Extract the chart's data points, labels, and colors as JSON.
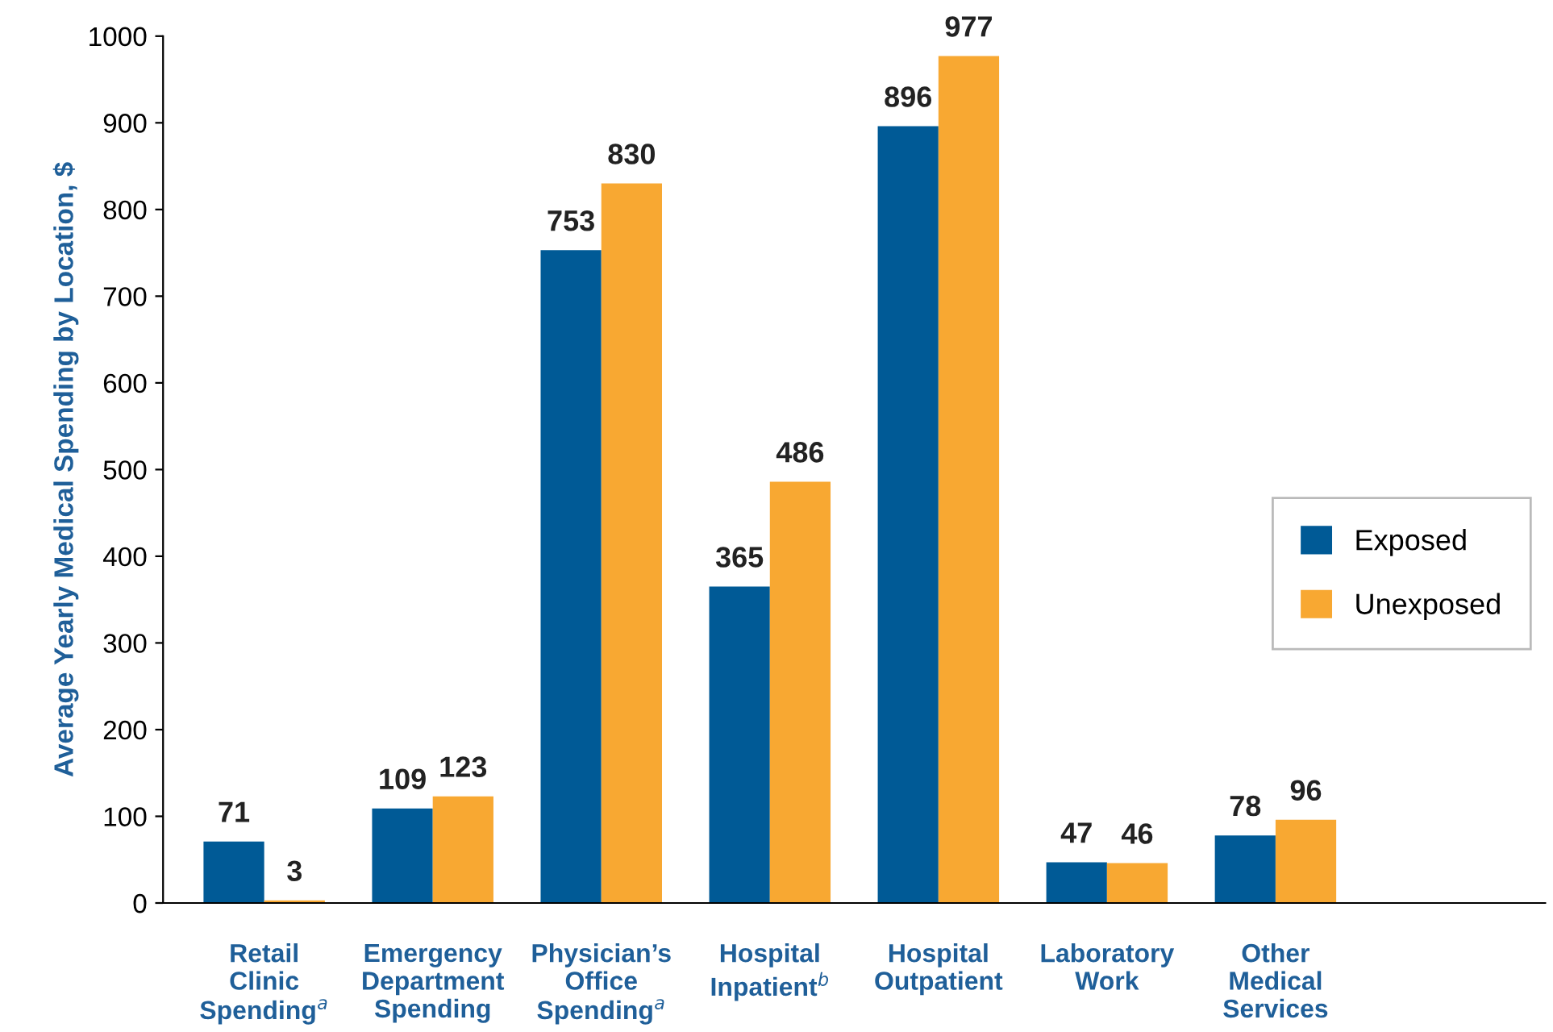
{
  "chart_data": {
    "type": "bar",
    "ylabel": "Average Yearly Medical Spending by Location, $",
    "categories": [
      "Retail\nClinic\nSpending$^{a}$",
      "Emergency\nDepartment\nSpending",
      "Physician’s\nOffice\nSpending$^{a}$",
      "Hospital\nInpatient$^{b}$",
      "Hospital\nOutpatient",
      "Laboratory\nWork",
      "Other\nMedical\nServices"
    ],
    "series": [
      {
        "name": "Exposed",
        "color": "#005a96",
        "values": [
          71,
          109,
          753,
          365,
          896,
          47,
          78
        ]
      },
      {
        "name": "Unexposed",
        "color": "#f8a832",
        "values": [
          3,
          123,
          830,
          486,
          977,
          46,
          96
        ]
      }
    ],
    "ylim": [
      0,
      1000
    ],
    "yticks": [
      0,
      100,
      200,
      300,
      400,
      500,
      600,
      700,
      800,
      900,
      1000
    ],
    "data_labels": true,
    "grid": false,
    "legend": "right"
  }
}
